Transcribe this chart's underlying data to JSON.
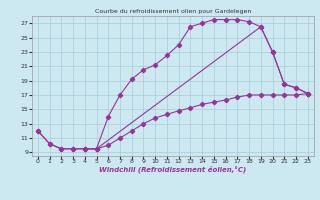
{
  "title": "Courbe du refroidissement olien pour Gardelegen",
  "xlabel": "Windchill (Refroidissement éolien,°C)",
  "background_color": "#cce8f0",
  "line_color": "#993399",
  "grid_color": "#a8ccd8",
  "xlim": [
    -0.5,
    23.5
  ],
  "ylim": [
    8.5,
    28.0
  ],
  "xticks": [
    0,
    1,
    2,
    3,
    4,
    5,
    6,
    7,
    8,
    9,
    10,
    11,
    12,
    13,
    14,
    15,
    16,
    17,
    18,
    19,
    20,
    21,
    22,
    23
  ],
  "yticks": [
    9,
    11,
    13,
    15,
    17,
    19,
    21,
    23,
    25,
    27
  ],
  "series1_x": [
    0,
    1,
    2,
    3,
    4,
    5,
    6,
    7,
    8,
    9,
    10,
    11,
    12,
    13,
    14,
    15,
    16,
    17,
    18,
    19,
    20,
    21,
    22,
    23
  ],
  "series1_y": [
    12.0,
    10.2,
    9.5,
    9.5,
    9.5,
    9.5,
    14.0,
    17.0,
    19.2,
    20.5,
    21.2,
    22.5,
    24.0,
    26.5,
    27.0,
    27.5,
    27.5,
    27.5,
    27.2,
    26.5,
    23.0,
    18.5,
    18.0,
    17.2
  ],
  "series2_x": [
    0,
    1,
    2,
    3,
    4,
    5,
    6,
    7,
    8,
    9,
    10,
    11,
    12,
    13,
    14,
    15,
    16,
    17,
    18,
    19,
    20,
    21,
    22,
    23
  ],
  "series2_y": [
    12.0,
    10.2,
    9.5,
    9.5,
    9.5,
    9.5,
    10.0,
    11.0,
    12.0,
    13.0,
    13.8,
    14.3,
    14.8,
    15.2,
    15.7,
    16.0,
    16.3,
    16.7,
    17.0,
    17.0,
    17.0,
    17.0,
    17.0,
    17.2
  ],
  "series3_x": [
    4,
    5,
    19,
    20,
    21,
    22,
    23
  ],
  "series3_y": [
    9.5,
    9.5,
    26.5,
    23.0,
    18.5,
    18.0,
    17.2
  ]
}
